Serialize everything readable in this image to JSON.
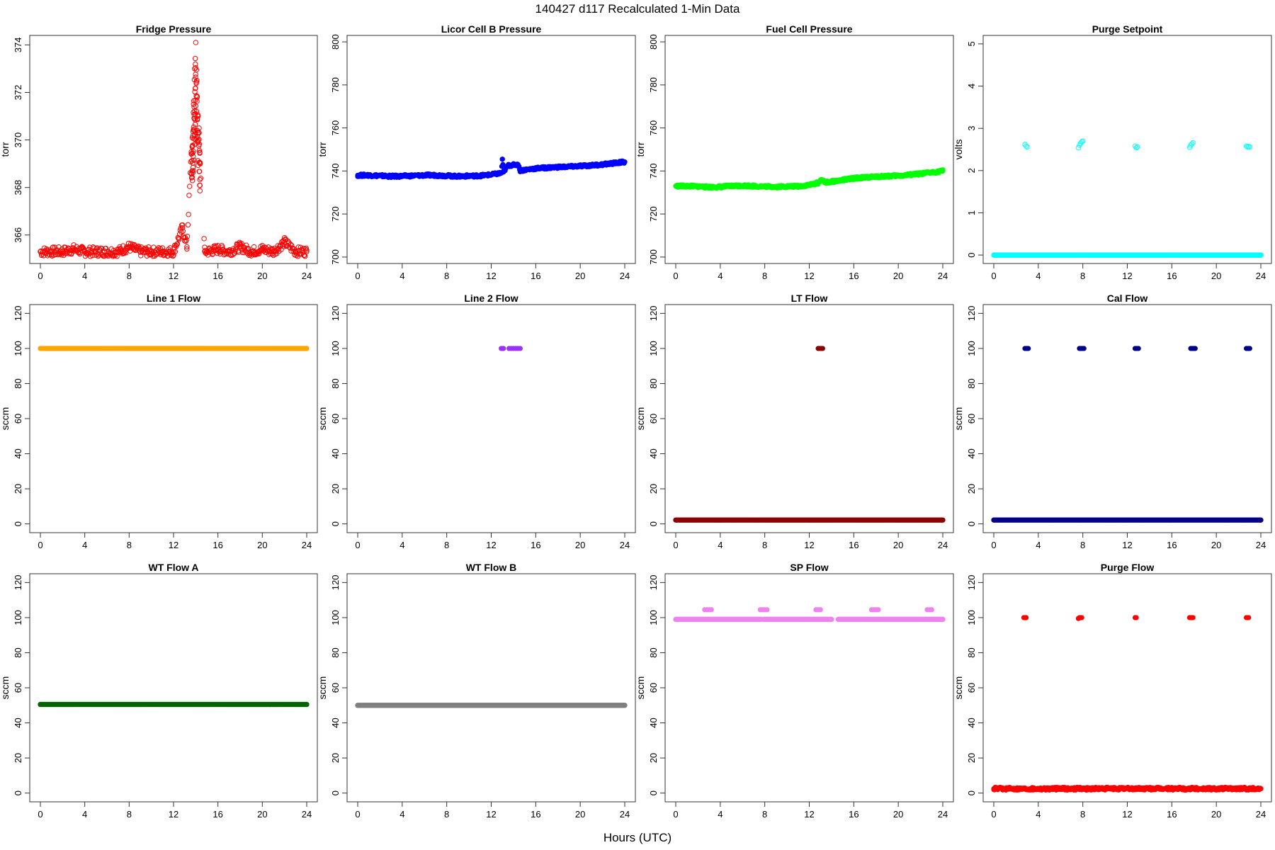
{
  "figure": {
    "title": "140427   d117   Recalculated 1-Min Data",
    "xlabel": "Hours (UTC)"
  },
  "chart_data": [
    {
      "type": "scatter",
      "title": "Fridge Pressure",
      "ylabel": "torr",
      "xlim": [
        0,
        24
      ],
      "ylim": [
        364.8,
        374.4
      ],
      "xticks": [
        0,
        4,
        8,
        12,
        16,
        20,
        24
      ],
      "yticks": [
        366,
        368,
        370,
        372,
        374
      ],
      "color": "#ff0000",
      "marker": "open",
      "series": [
        {
          "x": [
            0,
            1,
            2,
            3,
            4,
            5,
            6,
            7,
            8,
            9,
            10,
            11,
            12,
            12.8,
            13.2,
            13.6,
            13.8,
            13.9,
            14.0,
            14.1,
            14.2,
            14.3,
            14.4,
            14.8,
            15,
            16,
            17,
            18,
            19,
            20,
            21,
            22,
            23,
            24
          ],
          "y": [
            365.3,
            365.3,
            365.3,
            365.4,
            365.3,
            365.3,
            365.3,
            365.3,
            365.5,
            365.3,
            365.3,
            365.3,
            365.3,
            366.3,
            365.5,
            369.5,
            371.5,
            373.0,
            374.1,
            372.5,
            371.0,
            370.5,
            369.0,
            365.3,
            365.3,
            365.4,
            365.3,
            365.5,
            365.3,
            365.4,
            365.3,
            365.7,
            365.3,
            365.3
          ],
          "band": {
            "spread": 0.2,
            "spike": [
              13.6,
              14.4
            ],
            "gap": [
              14.45,
              14.75
            ]
          }
        }
      ]
    },
    {
      "type": "scatter",
      "title": "Licor Cell B Pressure",
      "ylabel": "torr",
      "xlim": [
        0,
        24
      ],
      "ylim": [
        697,
        803
      ],
      "xticks": [
        0,
        4,
        8,
        12,
        16,
        20,
        24
      ],
      "yticks": [
        700,
        720,
        740,
        760,
        780,
        800
      ],
      "color": "#0000ff",
      "marker": "filled",
      "series": [
        {
          "x": [
            0,
            1,
            2,
            3,
            4,
            5,
            6,
            7,
            8,
            9,
            10,
            11,
            12,
            12.9,
            13.0,
            13.1,
            13.5,
            14.0,
            14.4,
            14.6,
            15,
            16,
            17,
            18,
            19,
            20,
            21,
            22,
            23,
            24
          ],
          "y": [
            738.0,
            738.0,
            737.8,
            737.5,
            737.6,
            737.8,
            738.0,
            738.0,
            737.8,
            737.5,
            737.7,
            737.8,
            738.3,
            739.0,
            745.5,
            739.5,
            742.5,
            742.8,
            743.0,
            740.2,
            740.5,
            741.2,
            741.5,
            741.8,
            742.0,
            742.3,
            742.6,
            743.0,
            743.6,
            744.2
          ],
          "band": {
            "spread": 0.6
          }
        }
      ]
    },
    {
      "type": "scatter",
      "title": "Fuel Cell Pressure",
      "ylabel": "torr",
      "xlim": [
        0,
        24
      ],
      "ylim": [
        697,
        803
      ],
      "xticks": [
        0,
        4,
        8,
        12,
        16,
        20,
        24
      ],
      "yticks": [
        700,
        720,
        740,
        760,
        780,
        800
      ],
      "color": "#00ff00",
      "marker": "filled",
      "series": [
        {
          "x": [
            0,
            1,
            2,
            3,
            4,
            5,
            6,
            7,
            8,
            9,
            10,
            11,
            12,
            12.8,
            13.1,
            13.4,
            14,
            15,
            16,
            17,
            18,
            19,
            20,
            21,
            22,
            23,
            24
          ],
          "y": [
            733.0,
            733.0,
            732.8,
            732.5,
            732.6,
            733.0,
            733.2,
            733.0,
            732.8,
            732.7,
            732.8,
            732.9,
            733.5,
            734.5,
            736.0,
            734.6,
            735.0,
            735.8,
            736.6,
            737.0,
            737.3,
            737.6,
            737.8,
            738.2,
            738.7,
            739.3,
            740.0
          ],
          "band": {
            "spread": 0.6
          }
        }
      ]
    },
    {
      "type": "scatter",
      "title": "Purge Setpoint",
      "ylabel": "volts",
      "xlim": [
        0,
        24
      ],
      "ylim": [
        -0.2,
        5.2
      ],
      "xticks": [
        0,
        4,
        8,
        12,
        16,
        20,
        24
      ],
      "yticks": [
        0,
        1,
        2,
        3,
        4,
        5
      ],
      "color": "#00ffff",
      "marker": "open",
      "series": [
        {
          "x": [
            0,
            2.8,
            2.9,
            3.0,
            7.6,
            7.7,
            7.8,
            7.9,
            8.0,
            12.7,
            12.8,
            12.9,
            17.6,
            17.7,
            17.8,
            17.9,
            22.7,
            22.8,
            22.9,
            23.0,
            24
          ],
          "y": [
            0,
            2.62,
            2.58,
            2.56,
            2.54,
            2.6,
            2.65,
            2.68,
            2.7,
            2.58,
            2.54,
            2.56,
            2.55,
            2.6,
            2.63,
            2.66,
            2.58,
            2.56,
            2.57,
            2.56,
            0
          ],
          "band": {
            "baseline": 0
          }
        }
      ]
    },
    {
      "type": "scatter",
      "title": "Line 1 Flow",
      "ylabel": "sccm",
      "xlim": [
        0,
        24
      ],
      "ylim": [
        -5,
        125
      ],
      "xticks": [
        0,
        4,
        8,
        12,
        16,
        20,
        24
      ],
      "yticks": [
        0,
        20,
        40,
        60,
        80,
        100,
        120
      ],
      "color": "#ffa500",
      "marker": "filled",
      "series": [
        {
          "x": [
            0,
            24
          ],
          "y": [
            100,
            100
          ],
          "band": {
            "baseline": 100
          }
        }
      ]
    },
    {
      "type": "scatter",
      "title": "Line 2 Flow",
      "ylabel": "sccm",
      "xlim": [
        0,
        24
      ],
      "ylim": [
        -5,
        125
      ],
      "xticks": [
        0,
        4,
        8,
        12,
        16,
        20,
        24
      ],
      "yticks": [
        0,
        20,
        40,
        60,
        80,
        100,
        120
      ],
      "color": "#9b30ff",
      "marker": "filled",
      "series": [
        {
          "x": [
            12.9,
            13.0,
            13.1,
            13.6,
            13.8,
            14.0,
            14.2,
            14.4,
            14.6
          ],
          "y": [
            100,
            100,
            100,
            100,
            100,
            100,
            100,
            100,
            100
          ]
        }
      ]
    },
    {
      "type": "scatter",
      "title": "LT Flow",
      "ylabel": "sccm",
      "xlim": [
        0,
        24
      ],
      "ylim": [
        -5,
        125
      ],
      "xticks": [
        0,
        4,
        8,
        12,
        16,
        20,
        24
      ],
      "yticks": [
        0,
        20,
        40,
        60,
        80,
        100,
        120
      ],
      "color": "#8b0000",
      "marker": "filled",
      "series": [
        {
          "x": [
            0,
            12.8,
            12.9,
            13.0,
            13.1,
            13.2,
            24
          ],
          "y": [
            2.2,
            100,
            100,
            100,
            100,
            100,
            2.2
          ],
          "band": {
            "baseline": 2.2
          }
        }
      ]
    },
    {
      "type": "scatter",
      "title": "Cal Flow",
      "ylabel": "sccm",
      "xlim": [
        0,
        24
      ],
      "ylim": [
        -5,
        125
      ],
      "xticks": [
        0,
        4,
        8,
        12,
        16,
        20,
        24
      ],
      "yticks": [
        0,
        20,
        40,
        60,
        80,
        100,
        120
      ],
      "color": "#00008b",
      "marker": "filled",
      "series": [
        {
          "x": [
            0,
            2.8,
            2.9,
            3.0,
            3.1,
            7.7,
            7.8,
            7.9,
            8.0,
            8.1,
            12.7,
            12.8,
            12.9,
            13.0,
            17.7,
            17.8,
            17.9,
            18.0,
            18.1,
            22.7,
            22.8,
            22.9,
            23.0,
            24
          ],
          "y": [
            2.2,
            100,
            100,
            100,
            100,
            100,
            100,
            100,
            100,
            100,
            100,
            100,
            100,
            100,
            100,
            100,
            100,
            100,
            100,
            100,
            100,
            100,
            100,
            2.2
          ],
          "band": {
            "baseline": 2.2
          }
        }
      ]
    },
    {
      "type": "scatter",
      "title": "WT Flow A",
      "ylabel": "sccm",
      "xlim": [
        0,
        24
      ],
      "ylim": [
        -5,
        125
      ],
      "xticks": [
        0,
        4,
        8,
        12,
        16,
        20,
        24
      ],
      "yticks": [
        0,
        20,
        40,
        60,
        80,
        100,
        120
      ],
      "color": "#006400",
      "marker": "filled",
      "series": [
        {
          "x": [
            0,
            24
          ],
          "y": [
            50.5,
            50.5
          ],
          "band": {
            "baseline": 50.5
          }
        }
      ]
    },
    {
      "type": "scatter",
      "title": "WT Flow B",
      "ylabel": "sccm",
      "xlim": [
        0,
        24
      ],
      "ylim": [
        -5,
        125
      ],
      "xticks": [
        0,
        4,
        8,
        12,
        16,
        20,
        24
      ],
      "yticks": [
        0,
        20,
        40,
        60,
        80,
        100,
        120
      ],
      "color": "#808080",
      "marker": "filled",
      "series": [
        {
          "x": [
            0,
            24
          ],
          "y": [
            50,
            50
          ],
          "band": {
            "baseline": 50
          }
        }
      ]
    },
    {
      "type": "scatter",
      "title": "SP Flow",
      "ylabel": "sccm",
      "xlim": [
        0,
        24
      ],
      "ylim": [
        -5,
        125
      ],
      "xticks": [
        0,
        4,
        8,
        12,
        16,
        20,
        24
      ],
      "yticks": [
        0,
        20,
        40,
        60,
        80,
        100,
        120
      ],
      "color": "#ee82ee",
      "marker": "filled",
      "series": [
        {
          "x": [
            0,
            2.6,
            2.8,
            3.0,
            3.2,
            7.6,
            7.8,
            8.0,
            8.2,
            12.6,
            12.8,
            13.0,
            13.2,
            17.6,
            17.8,
            18.0,
            18.2,
            22.6,
            22.8,
            23.0,
            24
          ],
          "y": [
            99,
            104.5,
            104.5,
            104.5,
            104.5,
            104.5,
            104.5,
            104.5,
            104.5,
            104.5,
            104.5,
            104.5,
            99,
            104.5,
            104.5,
            104.5,
            104.5,
            104.5,
            104.5,
            104.5,
            99
          ],
          "band": {
            "baseline": 99,
            "gaps": [
              [
                7.7,
                7.9
              ],
              [
                14.0,
                14.6
              ]
            ]
          }
        }
      ]
    },
    {
      "type": "scatter",
      "title": "Purge Flow",
      "ylabel": "sccm",
      "xlim": [
        0,
        24
      ],
      "ylim": [
        -5,
        125
      ],
      "xticks": [
        0,
        4,
        8,
        12,
        16,
        20,
        24
      ],
      "yticks": [
        0,
        20,
        40,
        60,
        80,
        100,
        120
      ],
      "color": "#ff0000",
      "marker": "filled",
      "series": [
        {
          "x": [
            0,
            2.7,
            2.8,
            2.9,
            7.6,
            7.7,
            7.8,
            7.9,
            12.7,
            12.8,
            17.6,
            17.7,
            17.8,
            17.9,
            22.7,
            22.8,
            22.9,
            24
          ],
          "y": [
            2.5,
            100,
            100,
            100,
            99.5,
            100,
            100,
            100,
            100,
            100,
            100,
            100,
            100,
            100,
            100,
            100,
            100,
            2.5
          ],
          "band": {
            "baseline": 2.5,
            "spread": 0.8
          }
        }
      ]
    }
  ]
}
